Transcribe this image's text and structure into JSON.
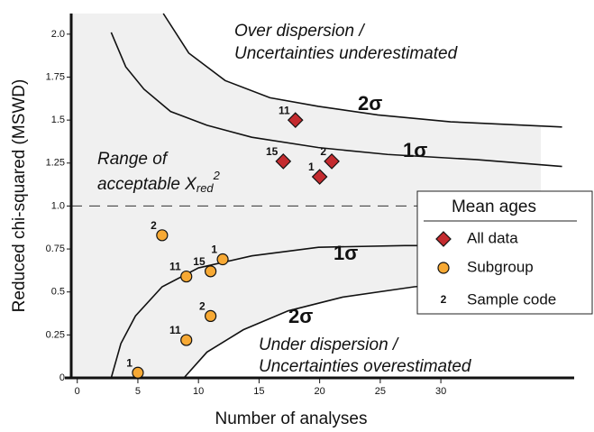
{
  "chart_data": {
    "type": "scatter",
    "x_label": "Number of analyses",
    "y_label": "Reduced chi-squared (MSWD)",
    "xlim": [
      -0.5,
      41
    ],
    "ylim": [
      0,
      2.12
    ],
    "xticks": [
      0,
      5,
      10,
      15,
      20,
      25,
      30
    ],
    "yticks": [
      0,
      0.25,
      0.5,
      0.75,
      {
        "value": 1,
        "label": "1.0"
      },
      1.25,
      1.5,
      1.75,
      {
        "value": 2,
        "label": "2.0"
      }
    ],
    "reference_y": 1,
    "series": [
      {
        "name": "All data",
        "color": "#c42b2f",
        "marker": "diamond",
        "x": [
          18,
          17,
          20,
          21
        ],
        "values": [
          1.5,
          1.26,
          1.17,
          1.26
        ],
        "labels": [
          "11",
          "15",
          "1",
          "2"
        ]
      },
      {
        "name": "Subgroup",
        "color": "#f7a934",
        "marker": "circle",
        "x": [
          7,
          9,
          11,
          12,
          11,
          9,
          5
        ],
        "values": [
          0.83,
          0.59,
          0.62,
          0.69,
          0.36,
          0.22,
          0.03
        ],
        "labels": [
          "2",
          "11",
          "15",
          "1",
          "2",
          "11",
          "1"
        ]
      }
    ],
    "curves": [
      {
        "name": "2σ",
        "x": [
          7.1,
          9.2,
          12.2,
          15.9,
          19.9,
          24.8,
          30.8,
          40
        ],
        "values": [
          2.12,
          1.89,
          1.73,
          1.63,
          1.58,
          1.53,
          1.49,
          1.46
        ]
      },
      {
        "name": "1σ",
        "x": [
          2.8,
          4,
          5.5,
          7.7,
          10.7,
          14.4,
          19.9,
          25.6,
          32.9,
          40
        ],
        "values": [
          2.01,
          1.81,
          1.68,
          1.55,
          1.47,
          1.4,
          1.34,
          1.3,
          1.27,
          1.23
        ]
      },
      {
        "name": "1σ",
        "x": [
          2.8,
          3.6,
          4.8,
          7,
          10,
          14.4,
          19.9,
          27,
          40
        ],
        "values": [
          0,
          0.2,
          0.36,
          0.53,
          0.64,
          0.71,
          0.76,
          0.77,
          0.77
        ]
      },
      {
        "name": "2σ",
        "x": [
          8.8,
          10.7,
          13.7,
          17.4,
          21.9,
          27.8,
          40
        ],
        "values": [
          0,
          0.15,
          0.28,
          0.39,
          0.47,
          0.53,
          0.6
        ]
      }
    ],
    "annotations": {
      "over_1": "Over dispersion /",
      "over_2": "Uncertainties underestimated",
      "range_1": "Range of",
      "range_2": "acceptable X",
      "range_sub": "red",
      "range_sup": "2",
      "under_1": "Under dispersion /",
      "under_2": "Uncertainties overestimated"
    },
    "legend": {
      "title": "Mean ages",
      "sample_code_symbol": "2",
      "sample_code": "Sample code",
      "position": "right"
    }
  }
}
